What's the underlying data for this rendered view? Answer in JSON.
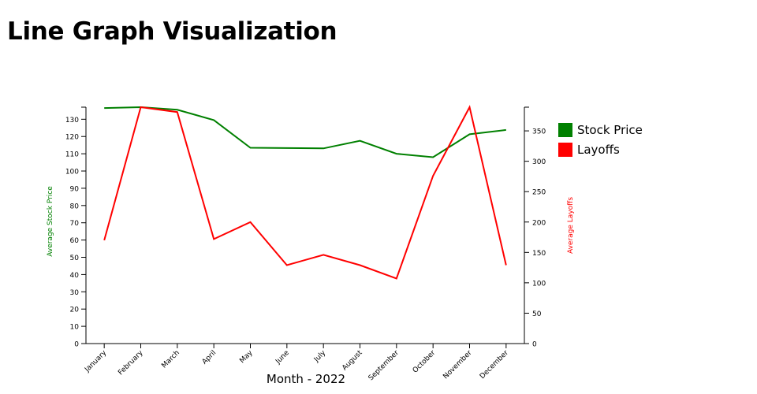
{
  "page": {
    "title": "Line Graph Visualization"
  },
  "chart_data": {
    "type": "line",
    "title": "Line Graph Visualization",
    "xlabel": "Month - 2022",
    "ylabel_left": "Average Stock Price",
    "ylabel_right": "Average Layoffs",
    "categories": [
      "January",
      "February",
      "March",
      "April",
      "May",
      "June",
      "July",
      "August",
      "September",
      "October",
      "November",
      "December"
    ],
    "y_left": {
      "lim": [
        0,
        137
      ],
      "ticks": [
        0,
        10,
        20,
        30,
        40,
        50,
        60,
        70,
        80,
        90,
        100,
        110,
        120,
        130
      ]
    },
    "y_right": {
      "lim": [
        0,
        389
      ],
      "ticks": [
        0,
        50,
        100,
        150,
        200,
        250,
        300,
        350
      ]
    },
    "series": [
      {
        "name": "Stock Price",
        "axis": "left",
        "color": "#008000",
        "values": [
          136.5,
          137,
          135.5,
          129.5,
          113.5,
          113.3,
          113.1,
          117.5,
          110,
          108,
          121.3,
          123.8
        ]
      },
      {
        "name": "Layoffs",
        "axis": "right",
        "color": "#ff0000",
        "values": [
          170,
          389,
          381,
          172,
          200,
          129,
          146,
          129,
          107,
          276,
          389,
          129
        ]
      }
    ],
    "legend_position": "right",
    "grid": false
  }
}
